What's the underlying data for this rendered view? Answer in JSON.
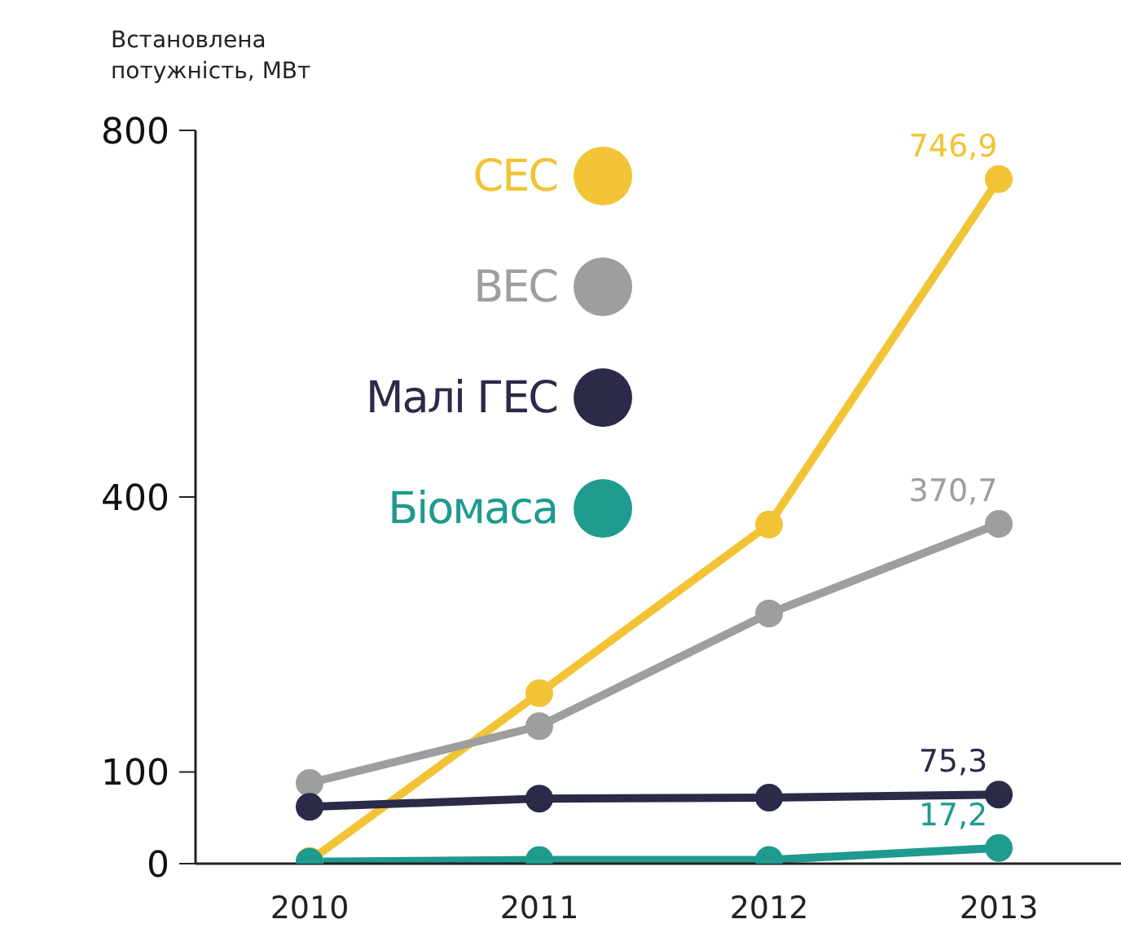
{
  "chart_data": {
    "type": "line",
    "ylabel": "Встановлена потужність, МВт",
    "categories": [
      "2010",
      "2011",
      "2012",
      "2013"
    ],
    "series": [
      {
        "name": "СЕС",
        "color": "#f2c335",
        "values": [
          3,
          186,
          370,
          746.9
        ],
        "value_labels": [
          null,
          null,
          null,
          "746,9"
        ]
      },
      {
        "name": "ВЕС",
        "color": "#9e9e9e",
        "values": [
          88,
          150,
          273,
          370.7
        ],
        "value_labels": [
          null,
          null,
          null,
          "370,7"
        ]
      },
      {
        "name": "Малі ГЕС",
        "color": "#2b2a48",
        "values": [
          62,
          71,
          72,
          75.3
        ],
        "value_labels": [
          null,
          null,
          null,
          "75,3"
        ]
      },
      {
        "name": "Біомаса",
        "color": "#1f9a8f",
        "values": [
          2,
          4,
          4,
          17.2
        ],
        "value_labels": [
          null,
          null,
          null,
          "17,2"
        ]
      }
    ],
    "ylim": [
      0,
      800
    ],
    "yticks": [
      0,
      100,
      400,
      800
    ],
    "legend": "top left",
    "marker": "circle"
  }
}
